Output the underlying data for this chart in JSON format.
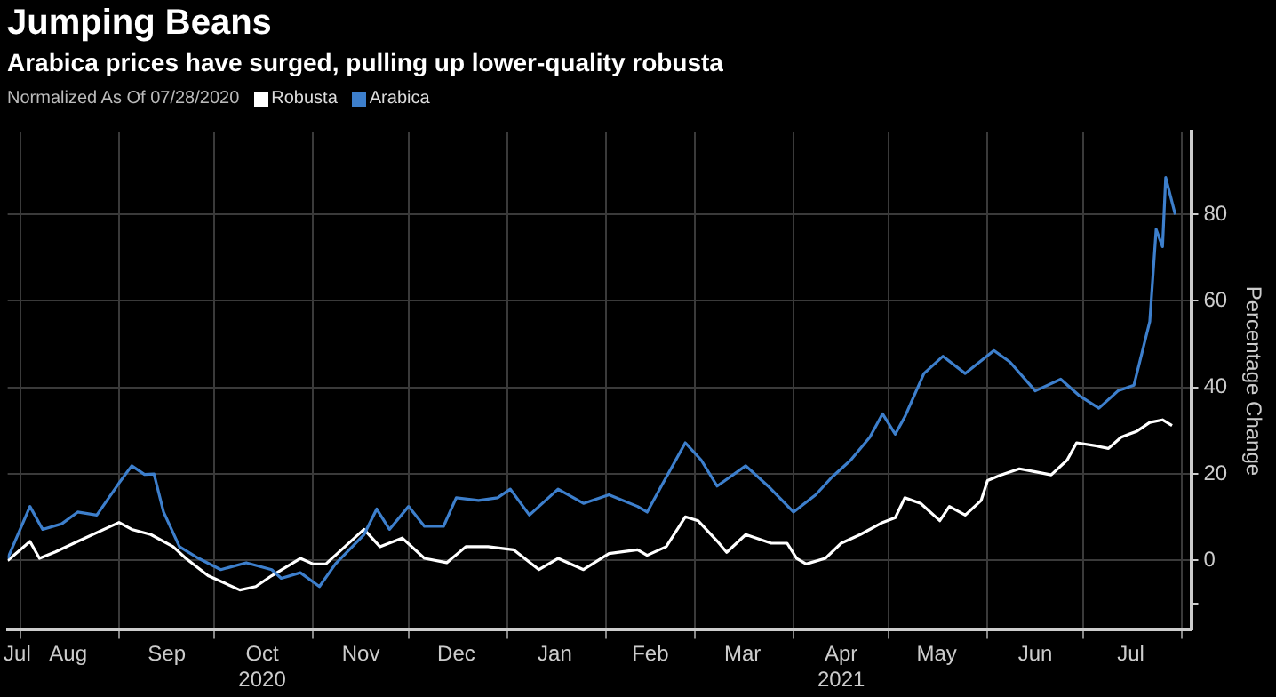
{
  "chart_data": {
    "type": "line",
    "title": "Jumping Beans",
    "subtitle": "Arabica prices have surged, pulling up lower-quality robusta",
    "legend_title": "Normalized As Of 07/28/2020",
    "ylabel": "Percentage Change",
    "legend": "top left",
    "grid": true,
    "marker": "none",
    "line_style": "solid",
    "xlim": [
      "2020-07-28",
      "2021-08-04"
    ],
    "ylim": [
      -16,
      99
    ],
    "yticks": [
      {
        "value": -10,
        "label": null
      },
      0,
      20,
      40,
      60,
      80
    ],
    "xticks": [
      {
        "value": "2020-07-31",
        "label": "Jul"
      },
      {
        "value": "2020-08-01",
        "label": null
      },
      {
        "value": "2020-08-16",
        "label": "Aug"
      },
      {
        "value": "2020-09-01",
        "label": null
      },
      {
        "value": "2020-09-16",
        "label": "Sep"
      },
      {
        "value": "2020-10-01",
        "label": null
      },
      {
        "value": "2020-10-16",
        "label": "Oct\n2020"
      },
      {
        "value": "2020-11-01",
        "label": null
      },
      {
        "value": "2020-11-16",
        "label": "Nov"
      },
      {
        "value": "2020-12-01",
        "label": null
      },
      {
        "value": "2020-12-16",
        "label": "Dec"
      },
      {
        "value": "2021-01-01",
        "label": null
      },
      {
        "value": "2021-01-16",
        "label": "Jan"
      },
      {
        "value": "2021-02-01",
        "label": null
      },
      {
        "value": "2021-02-15",
        "label": "Feb"
      },
      {
        "value": "2021-03-01",
        "label": null
      },
      {
        "value": "2021-03-16",
        "label": "Mar"
      },
      {
        "value": "2021-04-01",
        "label": null
      },
      {
        "value": "2021-04-16",
        "label": "Apr\n2021"
      },
      {
        "value": "2021-05-01",
        "label": null
      },
      {
        "value": "2021-05-16",
        "label": "May"
      },
      {
        "value": "2021-06-01",
        "label": null
      },
      {
        "value": "2021-06-16",
        "label": "Jun"
      },
      {
        "value": "2021-07-01",
        "label": null
      },
      {
        "value": "2021-07-16",
        "label": "Jul"
      },
      {
        "value": "2021-08-01",
        "label": null
      }
    ],
    "series": [
      {
        "name": "Robusta",
        "color": "#ffffff",
        "x": [
          "2020-07-28",
          "2020-08-04",
          "2020-08-07",
          "2020-08-12",
          "2020-08-19",
          "2020-09-01",
          "2020-09-05",
          "2020-09-11",
          "2020-09-18",
          "2020-09-22",
          "2020-09-29",
          "2020-10-09",
          "2020-10-14",
          "2020-10-19",
          "2020-10-28",
          "2020-11-01",
          "2020-11-05",
          "2020-11-11",
          "2020-11-17",
          "2020-11-22",
          "2020-11-29",
          "2020-12-06",
          "2020-12-13",
          "2020-12-19",
          "2020-12-26",
          "2021-01-03",
          "2021-01-11",
          "2021-01-17",
          "2021-01-25",
          "2021-02-02",
          "2021-02-11",
          "2021-02-14",
          "2021-02-20",
          "2021-02-26",
          "2021-03-02",
          "2021-03-08",
          "2021-03-11",
          "2021-03-17",
          "2021-03-25",
          "2021-03-30",
          "2021-04-02",
          "2021-04-05",
          "2021-04-11",
          "2021-04-16",
          "2021-04-22",
          "2021-04-29",
          "2021-05-03",
          "2021-05-06",
          "2021-05-11",
          "2021-05-17",
          "2021-05-20",
          "2021-05-25",
          "2021-05-30",
          "2021-06-01",
          "2021-06-05",
          "2021-06-11",
          "2021-06-16",
          "2021-06-21",
          "2021-06-26",
          "2021-06-29",
          "2021-07-05",
          "2021-07-09",
          "2021-07-13",
          "2021-07-18",
          "2021-07-22",
          "2021-07-26",
          "2021-07-29"
        ],
        "values": [
          0,
          4.4,
          0.5,
          2,
          4.4,
          8.8,
          7.2,
          6,
          3.2,
          0.5,
          -3.5,
          -6.8,
          -6,
          -3.5,
          0.5,
          -0.8,
          -0.8,
          3.2,
          7.2,
          3.2,
          5.2,
          0.5,
          -0.5,
          3.2,
          3.2,
          2.5,
          -2.1,
          0.5,
          -2.1,
          1.6,
          2.5,
          1.2,
          3.2,
          10.1,
          9.2,
          4.5,
          1.9,
          6,
          4,
          4,
          0.5,
          -0.8,
          0.5,
          4,
          6,
          8.8,
          9.9,
          14.5,
          13.2,
          9.2,
          12.5,
          10.5,
          13.9,
          18.5,
          19.7,
          21.2,
          20.5,
          19.8,
          23.2,
          27.2,
          26.5,
          25.9,
          28.5,
          29.9,
          31.9,
          32.5,
          31.2
        ]
      },
      {
        "name": "Arabica",
        "color": "#3d7fcc",
        "x": [
          "2020-07-28",
          "2020-08-04",
          "2020-08-08",
          "2020-08-14",
          "2020-08-19",
          "2020-08-25",
          "2020-09-01",
          "2020-09-05",
          "2020-09-09",
          "2020-09-12",
          "2020-09-15",
          "2020-09-20",
          "2020-09-26",
          "2020-10-03",
          "2020-10-11",
          "2020-10-19",
          "2020-10-22",
          "2020-10-28",
          "2020-11-03",
          "2020-11-08",
          "2020-11-17",
          "2020-11-21",
          "2020-11-25",
          "2020-12-01",
          "2020-12-06",
          "2020-12-12",
          "2020-12-16",
          "2020-12-23",
          "2020-12-29",
          "2021-01-02",
          "2021-01-08",
          "2021-01-17",
          "2021-01-25",
          "2021-02-02",
          "2021-02-11",
          "2021-02-14",
          "2021-02-19",
          "2021-02-26",
          "2021-03-03",
          "2021-03-08",
          "2021-03-17",
          "2021-03-24",
          "2021-04-01",
          "2021-04-08",
          "2021-04-13",
          "2021-04-19",
          "2021-04-25",
          "2021-04-29",
          "2021-05-03",
          "2021-05-06",
          "2021-05-12",
          "2021-05-18",
          "2021-05-25",
          "2021-06-03",
          "2021-06-08",
          "2021-06-16",
          "2021-06-24",
          "2021-06-30",
          "2021-07-06",
          "2021-07-12",
          "2021-07-17",
          "2021-07-22",
          "2021-07-24",
          "2021-07-26",
          "2021-07-27",
          "2021-07-30"
        ],
        "values": [
          0.5,
          12.5,
          7.2,
          8.5,
          11.2,
          10.5,
          17.9,
          21.9,
          19.9,
          20,
          11.2,
          3.2,
          0.5,
          -2.1,
          -0.5,
          -2.1,
          -4.1,
          -2.8,
          -6,
          -0.8,
          6,
          11.9,
          7.2,
          12.5,
          7.9,
          7.9,
          14.5,
          13.9,
          14.5,
          16.5,
          10.5,
          16.5,
          13.2,
          15.2,
          12.5,
          11.2,
          17.9,
          27.2,
          23.2,
          17.2,
          21.9,
          17.2,
          11.2,
          15.2,
          19.2,
          23.2,
          28.5,
          33.9,
          29.2,
          33.2,
          43.2,
          47.2,
          43.2,
          48.5,
          45.9,
          39.2,
          41.9,
          38,
          35.2,
          39.2,
          40.5,
          55.2,
          76.5,
          72.5,
          88.5,
          79.9
        ]
      }
    ]
  }
}
